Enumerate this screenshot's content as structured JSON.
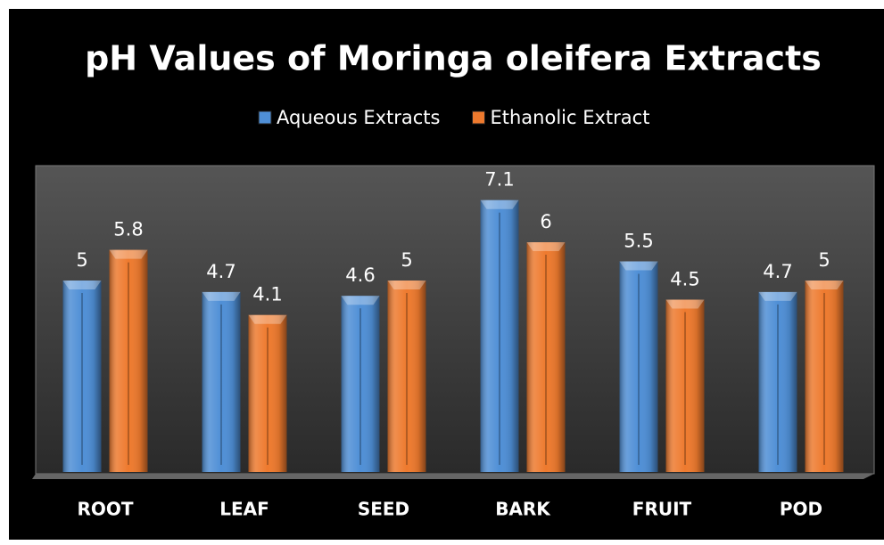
{
  "chart_data": {
    "type": "bar",
    "title": "pH Values of Moringa oleifera Extracts",
    "categories": [
      "ROOT",
      "LEAF",
      "SEED",
      "BARK",
      "FRUIT",
      "POD"
    ],
    "series": [
      {
        "name": "Aqueous Extracts",
        "color": "#4f8fd6",
        "values": [
          5,
          4.7,
          4.6,
          7.1,
          5.5,
          4.7
        ]
      },
      {
        "name": "Ethanolic Extract",
        "color": "#ee7a2e",
        "values": [
          5.8,
          4.1,
          5,
          6,
          4.5,
          5
        ]
      }
    ],
    "ylim": [
      0,
      8
    ],
    "legend": "top"
  }
}
